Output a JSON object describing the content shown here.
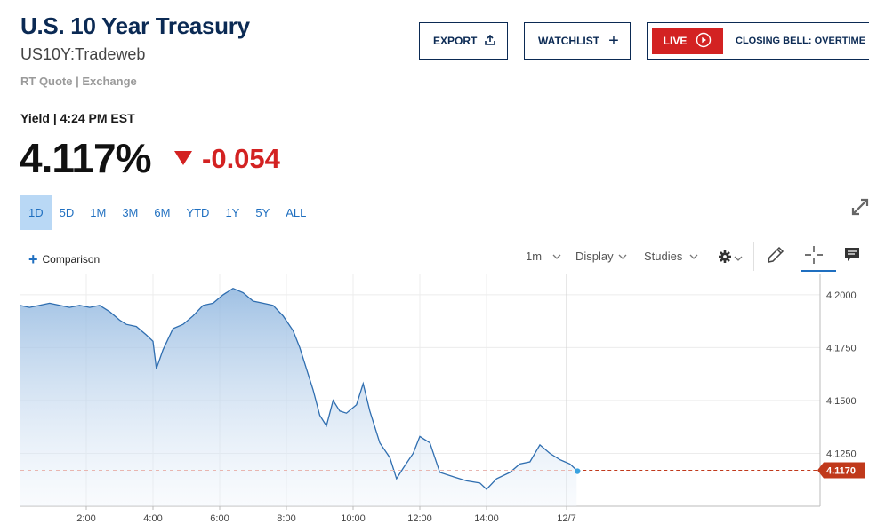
{
  "header": {
    "title": "U.S. 10 Year Treasury",
    "symbol": "US10Y:Tradeweb",
    "quote_source": "RT Quote | Exchange"
  },
  "buttons": {
    "export_label": "EXPORT",
    "watchlist_label": "WATCHLIST",
    "live_label": "LIVE",
    "live_text": "CLOSING BELL: OVERTIME"
  },
  "quote": {
    "label": "Yield | 4:24 PM EST",
    "last": "4.117%",
    "change": "-0.054"
  },
  "ranges": [
    "1D",
    "5D",
    "1M",
    "3M",
    "6M",
    "YTD",
    "1Y",
    "5Y",
    "ALL"
  ],
  "active_range": "1D",
  "toolbar": {
    "comparison": "Comparison",
    "interval": "1m",
    "display": "Display",
    "studies": "Studies"
  },
  "icons": {
    "export": "share-up-icon",
    "watchlist": "plus-icon",
    "live": "play-circle-icon",
    "expand": "expand-arrows-icon",
    "settings": "gear-icon",
    "draw": "pencil-icon",
    "crosshair": "crosshair-icon",
    "comment": "comment-icon"
  },
  "colors": {
    "brand": "#0b2a54",
    "negative": "#d32222",
    "accent": "#1f6fc0",
    "price_tag": "#c0391b",
    "line": "#2f6eb0"
  },
  "chart_data": {
    "type": "area",
    "x_ticks": [
      "2:00",
      "4:00",
      "6:00",
      "8:00",
      "10:00",
      "12:00",
      "14:00",
      "12/7"
    ],
    "y_ticks": [
      "4.2000",
      "4.1750",
      "4.1500",
      "4.1250"
    ],
    "ylim": [
      4.1,
      4.2075
    ],
    "last_value_label": "4.1170",
    "last_value": 4.117,
    "x_unit": "hours",
    "xlim": [
      0.0,
      24.0
    ],
    "grid": true,
    "x": [
      0.0,
      0.3,
      0.6,
      0.9,
      1.2,
      1.5,
      1.8,
      2.1,
      2.4,
      2.7,
      3.0,
      3.2,
      3.5,
      3.8,
      4.0,
      4.1,
      4.3,
      4.6,
      4.9,
      5.2,
      5.5,
      5.8,
      6.1,
      6.4,
      6.7,
      7.0,
      7.3,
      7.6,
      7.9,
      8.2,
      8.4,
      8.6,
      8.8,
      9.0,
      9.2,
      9.4,
      9.6,
      9.8,
      10.1,
      10.3,
      10.5,
      10.8,
      11.1,
      11.3,
      11.5,
      11.8,
      12.0,
      12.3,
      12.6,
      13.0,
      13.4,
      13.8,
      14.0,
      14.3,
      14.7,
      15.0,
      15.3,
      15.6,
      15.9,
      16.2,
      16.5,
      16.7
    ],
    "y": [
      4.195,
      4.194,
      4.195,
      4.196,
      4.195,
      4.194,
      4.195,
      4.194,
      4.195,
      4.192,
      4.188,
      4.186,
      4.185,
      4.181,
      4.178,
      4.165,
      4.174,
      4.184,
      4.186,
      4.19,
      4.195,
      4.196,
      4.2,
      4.203,
      4.201,
      4.197,
      4.196,
      4.195,
      4.19,
      4.183,
      4.175,
      4.165,
      4.155,
      4.143,
      4.138,
      4.15,
      4.145,
      4.144,
      4.148,
      4.158,
      4.145,
      4.13,
      4.123,
      4.113,
      4.118,
      4.125,
      4.133,
      4.13,
      4.116,
      4.114,
      4.112,
      4.111,
      4.108,
      4.113,
      4.116,
      4.12,
      4.121,
      4.129,
      4.125,
      4.122,
      4.12,
      4.117
    ]
  }
}
